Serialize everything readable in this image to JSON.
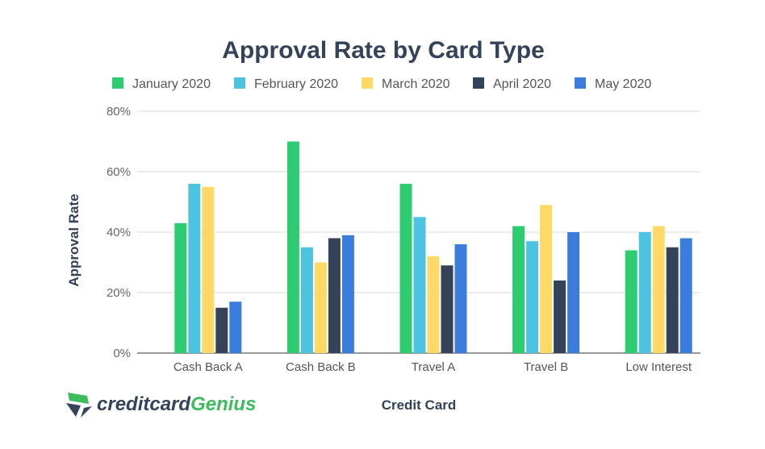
{
  "chart_data": {
    "type": "bar",
    "title": "Approval Rate by Card Type",
    "xlabel": "Credit Card",
    "ylabel": "Approval Rate",
    "ylim": [
      0,
      80
    ],
    "yticks": [
      "0%",
      "20%",
      "40%",
      "60%",
      "80%"
    ],
    "grid": true,
    "legend_position": "top",
    "categories": [
      "Cash Back A",
      "Cash Back B",
      "Travel A",
      "Travel B",
      "Low Interest"
    ],
    "series": [
      {
        "name": "January 2020",
        "color": "#2ecc71",
        "values": [
          43,
          70,
          56,
          42,
          34
        ]
      },
      {
        "name": "February 2020",
        "color": "#4cc3df",
        "values": [
          56,
          35,
          45,
          37,
          40
        ]
      },
      {
        "name": "March 2020",
        "color": "#ffd966",
        "values": [
          55,
          30,
          32,
          49,
          42
        ]
      },
      {
        "name": "April 2020",
        "color": "#34425a",
        "values": [
          15,
          38,
          29,
          24,
          35
        ]
      },
      {
        "name": "May 2020",
        "color": "#3b7ddd",
        "values": [
          17,
          39,
          36,
          40,
          38
        ]
      }
    ]
  },
  "logo": {
    "text_a": "creditcard",
    "text_b": "Genius"
  }
}
